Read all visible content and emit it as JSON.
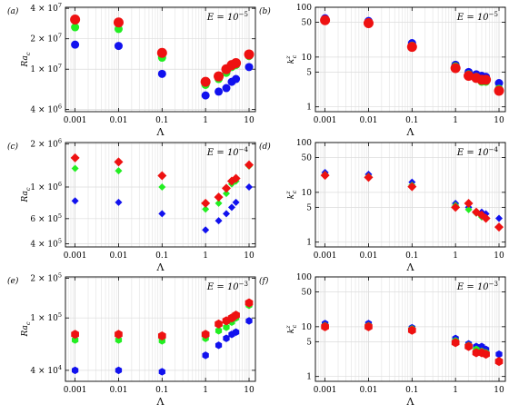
{
  "colors": {
    "red": "#ee1111",
    "green": "#22ee22",
    "blue": "#1111ee"
  },
  "chart_data": [
    {
      "panel": "(a)",
      "type": "scatter",
      "xscale": "log",
      "yscale": "log",
      "xlabel": "Λ",
      "ylabel": "Ra",
      "ylabel_sub": "c",
      "annotation": "E = 10",
      "annotation_exp": "−5",
      "xlim": [
        0.0006,
        14
      ],
      "ylim": [
        3800000.0,
        41000000.0
      ],
      "xticks": [
        0.001,
        0.01,
        0.1,
        1,
        10
      ],
      "xticklabels": [
        "0.001",
        "0.01",
        "0.1",
        "1",
        "10"
      ],
      "yticks": [
        4000000.0,
        10000000.0,
        20000000.0,
        40000000.0
      ],
      "yticklabels": [
        {
          "m": "4 × 10",
          "e": "6"
        },
        {
          "m": "1 × 10",
          "e": "7"
        },
        {
          "m": "2 × 10",
          "e": "7"
        },
        {
          "m": "4 × 10",
          "e": "7"
        }
      ],
      "series": [
        {
          "color": "red",
          "marker": "circle",
          "x": [
            0.001,
            0.01,
            0.1,
            1,
            2,
            3,
            4,
            5,
            10
          ],
          "y": [
            31000000.0,
            29000000.0,
            14500000.0,
            7500000.0,
            8500000.0,
            10000000.0,
            11000000.0,
            11500000.0,
            14000000.0
          ]
        },
        {
          "color": "green",
          "marker": "circle",
          "x": [
            0.001,
            0.01,
            0.1,
            1,
            2,
            3,
            4,
            5,
            10
          ],
          "y": [
            26000000.0,
            25000000.0,
            13000000.0,
            7000000.0,
            8000000.0,
            9200000.0,
            10500000.0,
            11000000.0,
            13500000.0
          ]
        },
        {
          "color": "blue",
          "marker": "circle",
          "x": [
            0.001,
            0.01,
            0.1,
            1,
            2,
            3,
            4,
            5,
            10
          ],
          "y": [
            17500000.0,
            17000000.0,
            9000000.0,
            5500000.0,
            6000000.0,
            6500000.0,
            7500000.0,
            8000000.0,
            10500000.0
          ]
        }
      ]
    },
    {
      "panel": "(b)",
      "type": "scatter",
      "xscale": "log",
      "yscale": "log",
      "xlabel": "Λ",
      "ylabel": "k",
      "ylabel_sub": "c",
      "ylabel_sup": "z",
      "annotation": "E = 10",
      "annotation_exp": "−5",
      "xlim": [
        0.0006,
        14
      ],
      "ylim": [
        0.8,
        100
      ],
      "xticks": [
        0.001,
        0.01,
        0.1,
        1,
        10
      ],
      "xticklabels": [
        "0.001",
        "0.01",
        "0.1",
        "1",
        "10"
      ],
      "yticks": [
        1,
        5,
        10,
        50,
        100
      ],
      "yticklabels": [
        "1",
        "5",
        "10",
        "50",
        "100"
      ],
      "series": [
        {
          "color": "red",
          "marker": "circle",
          "x": [
            0.001,
            0.01,
            0.1,
            1,
            2,
            3,
            4,
            5,
            10
          ],
          "y": [
            55,
            48,
            16,
            6,
            4.2,
            3.8,
            3.5,
            3.5,
            2.1
          ]
        },
        {
          "color": "green",
          "marker": "circle",
          "x": [
            0.001,
            0.01,
            0.1,
            1,
            2,
            3,
            4,
            5,
            10
          ],
          "y": [
            57,
            50,
            17,
            6.5,
            4.5,
            4,
            3.2,
            3.2,
            2.3
          ]
        },
        {
          "color": "blue",
          "marker": "circle",
          "x": [
            0.001,
            0.01,
            0.1,
            1,
            2,
            3,
            4,
            5,
            10
          ],
          "y": [
            60,
            53,
            19,
            7,
            5,
            4.5,
            4.2,
            4,
            3
          ]
        }
      ]
    },
    {
      "panel": "(c)",
      "type": "scatter",
      "xscale": "log",
      "yscale": "log",
      "xlabel": "Λ",
      "ylabel": "Ra",
      "ylabel_sub": "c",
      "annotation": "E = 10",
      "annotation_exp": "−4",
      "xlim": [
        0.0006,
        14
      ],
      "ylim": [
        380000.0,
        2050000.0
      ],
      "xticks": [
        0.001,
        0.01,
        0.1,
        1,
        10
      ],
      "xticklabels": [
        "0.001",
        "0.01",
        "0.1",
        "1",
        "10"
      ],
      "yticks": [
        400000.0,
        600000.0,
        1000000.0,
        2000000.0
      ],
      "yticklabels": [
        {
          "m": "4 × 10",
          "e": "5"
        },
        {
          "m": "6 × 10",
          "e": "5"
        },
        {
          "m": "1 × 10",
          "e": "6"
        },
        {
          "m": "2 × 10",
          "e": "6"
        }
      ],
      "series": [
        {
          "color": "red",
          "marker": "diamond",
          "x": [
            0.001,
            0.01,
            0.1,
            1,
            2,
            3,
            4,
            5,
            10
          ],
          "y": [
            1600000.0,
            1500000.0,
            1200000.0,
            770000.0,
            850000.0,
            980000.0,
            1100000.0,
            1150000.0,
            1430000.0
          ]
        },
        {
          "color": "green",
          "marker": "diamond",
          "x": [
            0.001,
            0.01,
            0.1,
            1,
            2,
            3,
            4,
            5,
            10
          ],
          "y": [
            1350000.0,
            1300000.0,
            1000000.0,
            700000.0,
            770000.0,
            900000.0,
            1050000.0,
            1100000.0,
            1400000.0
          ]
        },
        {
          "color": "blue",
          "marker": "diamond",
          "x": [
            0.001,
            0.01,
            0.1,
            1,
            2,
            3,
            4,
            5,
            10
          ],
          "y": [
            800000.0,
            780000.0,
            650000.0,
            500000.0,
            580000.0,
            650000.0,
            720000.0,
            780000.0,
            1000000.0
          ]
        }
      ]
    },
    {
      "panel": "(d)",
      "type": "scatter",
      "xscale": "log",
      "yscale": "log",
      "xlabel": "Λ",
      "ylabel": "k",
      "ylabel_sub": "c",
      "ylabel_sup": "z",
      "annotation": "E = 10",
      "annotation_exp": "−4",
      "xlim": [
        0.0006,
        14
      ],
      "ylim": [
        0.8,
        100
      ],
      "xticks": [
        0.001,
        0.01,
        0.1,
        1,
        10
      ],
      "xticklabels": [
        "0.001",
        "0.01",
        "0.1",
        "1",
        "10"
      ],
      "yticks": [
        1,
        5,
        10,
        50,
        100
      ],
      "yticklabels": [
        "1",
        "5",
        "10",
        "50",
        "100"
      ],
      "series": [
        {
          "color": "red",
          "marker": "diamond",
          "x": [
            0.001,
            0.01,
            0.1,
            1,
            2,
            3,
            4,
            5,
            10
          ],
          "y": [
            22,
            20,
            13,
            5,
            6,
            4,
            3.5,
            3,
            2
          ]
        },
        {
          "color": "green",
          "marker": "diamond",
          "x": [
            0.001,
            0.01,
            0.1,
            1,
            2,
            3,
            4,
            5,
            10
          ],
          "y": [
            23,
            21,
            14,
            5.5,
            4.5,
            3.8,
            3.2,
            3,
            2
          ]
        },
        {
          "color": "blue",
          "marker": "diamond",
          "x": [
            0.001,
            0.01,
            0.1,
            1,
            2,
            3,
            4,
            5,
            10
          ],
          "y": [
            25,
            23,
            16,
            6,
            5,
            4,
            4,
            3.7,
            3
          ]
        }
      ]
    },
    {
      "panel": "(e)",
      "type": "scatter",
      "xscale": "log",
      "yscale": "log",
      "xlabel": "Λ",
      "ylabel": "Ra",
      "ylabel_sub": "c",
      "annotation": "E = 10",
      "annotation_exp": "−3",
      "xlim": [
        0.0006,
        14
      ],
      "ylim": [
        33000.0,
        205000.0
      ],
      "xticks": [
        0.001,
        0.01,
        0.1,
        1,
        10
      ],
      "xticklabels": [
        "0.001",
        "0.01",
        "0.1",
        "1",
        "10"
      ],
      "yticks": [
        40000.0,
        100000.0,
        200000.0
      ],
      "yticklabels": [
        {
          "m": "4 × 10",
          "e": "4"
        },
        {
          "m": "1 × 10",
          "e": "5"
        },
        {
          "m": "2 × 10",
          "e": "5"
        }
      ],
      "series": [
        {
          "color": "red",
          "marker": "hexagon",
          "x": [
            0.001,
            0.01,
            0.1,
            1,
            2,
            3,
            4,
            5,
            10
          ],
          "y": [
            75000.0,
            75000.0,
            73000.0,
            75000.0,
            90000.0,
            95000.0,
            100000.0,
            105000.0,
            130000.0
          ]
        },
        {
          "color": "green",
          "marker": "hexagon",
          "x": [
            0.001,
            0.01,
            0.1,
            1,
            2,
            3,
            4,
            5,
            10
          ],
          "y": [
            68000.0,
            68000.0,
            67000.0,
            70000.0,
            80000.0,
            85000.0,
            93000.0,
            100000.0,
            125000.0
          ]
        },
        {
          "color": "blue",
          "marker": "hexagon",
          "x": [
            0.001,
            0.01,
            0.1,
            1,
            2,
            3,
            4,
            5,
            10
          ],
          "y": [
            40000.0,
            40000.0,
            39000.0,
            52000.0,
            62000.0,
            70000.0,
            75000.0,
            78000.0,
            95000.0
          ]
        }
      ]
    },
    {
      "panel": "(f)",
      "type": "scatter",
      "xscale": "log",
      "yscale": "log",
      "xlabel": "Λ",
      "ylabel": "k",
      "ylabel_sub": "c",
      "ylabel_sup": "z",
      "annotation": "E = 10",
      "annotation_exp": "−3",
      "xlim": [
        0.0006,
        14
      ],
      "ylim": [
        0.8,
        100
      ],
      "xticks": [
        0.001,
        0.01,
        0.1,
        1,
        10
      ],
      "xticklabels": [
        "0.001",
        "0.01",
        "0.1",
        "1",
        "10"
      ],
      "yticks": [
        1,
        5,
        10,
        50,
        100
      ],
      "yticklabels": [
        "1",
        "5",
        "10",
        "50",
        "100"
      ],
      "series": [
        {
          "color": "red",
          "marker": "hexagon",
          "x": [
            0.001,
            0.01,
            0.1,
            1,
            2,
            3,
            4,
            5,
            10
          ],
          "y": [
            10,
            10,
            8.5,
            4.8,
            4,
            3,
            3,
            2.8,
            2
          ]
        },
        {
          "color": "green",
          "marker": "hexagon",
          "x": [
            0.001,
            0.01,
            0.1,
            1,
            2,
            3,
            4,
            5,
            10
          ],
          "y": [
            10.5,
            10.5,
            9,
            5.2,
            4.2,
            3.5,
            3.2,
            3,
            2
          ]
        },
        {
          "color": "blue",
          "marker": "hexagon",
          "x": [
            0.001,
            0.01,
            0.1,
            1,
            2,
            3,
            4,
            5,
            10
          ],
          "y": [
            11.5,
            11.5,
            9.5,
            5.8,
            4.5,
            4,
            4,
            3.5,
            2.8
          ]
        }
      ]
    }
  ]
}
